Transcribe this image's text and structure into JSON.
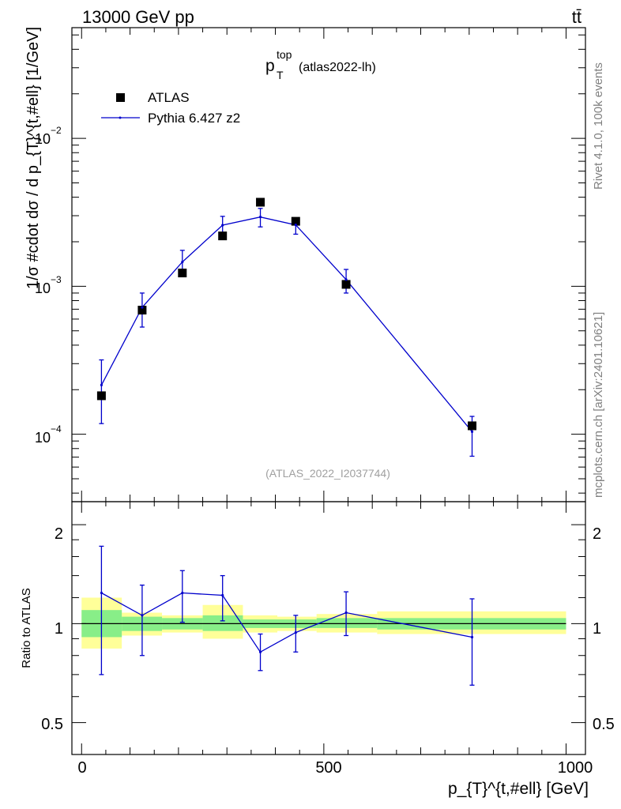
{
  "header": {
    "left": "13000 GeV pp",
    "right": "tt̄"
  },
  "side_labels": {
    "rivet": "Rivet 4.1.0,  100k events",
    "mcplots": "mcplots.cern.ch [arXiv:2401.10621]"
  },
  "chart_data": [
    {
      "type": "scatter",
      "panel": "main",
      "title": {
        "main": "p",
        "superscript": "top",
        "subscript": "T",
        "suffix": "(atlas2022-lh)"
      },
      "watermark": "(ATLAS_2022_I2037744)",
      "ylabel": "1/σ #cdot dσ / d p_{T}^{t,#ell} [1/GeV]",
      "yscale": "log",
      "ylim": [
        3.5e-05,
        0.056
      ],
      "xlim": [
        -20,
        1040
      ],
      "y_tick_labels": [
        {
          "base": "10",
          "exp": "−4",
          "value": 0.0001
        },
        {
          "base": "10",
          "exp": "−3",
          "value": 0.001
        },
        {
          "base": "10",
          "exp": "−2",
          "value": 0.01
        }
      ],
      "legend": [
        {
          "label": "ATLAS",
          "marker": "square",
          "color": "#000000"
        },
        {
          "label": "Pythia 6.427 z2",
          "marker": "line",
          "color": "#0000cc"
        }
      ],
      "series": [
        {
          "name": "ATLAS",
          "color": "#000000",
          "x": [
            41,
            125,
            208,
            291,
            369,
            442,
            546,
            806
          ],
          "y": [
            0.000182,
            0.00069,
            0.00123,
            0.00219,
            0.0037,
            0.00275,
            0.00103,
            0.000114
          ]
        },
        {
          "name": "Pythia 6.427 z2",
          "color": "#0000cc",
          "x": [
            41,
            125,
            208,
            291,
            369,
            442,
            546,
            806
          ],
          "y": [
            0.000215,
            0.00072,
            0.00146,
            0.00259,
            0.00294,
            0.0026,
            0.00111,
            0.000104
          ],
          "y_err_low": [
            9.7e-05,
            0.00019,
            0.00023,
            0.00035,
            0.00042,
            0.00035,
            0.00021,
            3.3e-05
          ],
          "y_err_high": [
            0.000103,
            0.00018,
            0.00029,
            0.00038,
            0.00042,
            0.00028,
            0.00019,
            2.8e-05
          ]
        }
      ]
    },
    {
      "type": "line",
      "panel": "ratio",
      "ylabel": "Ratio to ATLAS",
      "xlabel": "p_{T}^{t,#ell} [GeV]",
      "xlim": [
        -20,
        1040
      ],
      "ylim": [
        0.4,
        2.35
      ],
      "yscale": "log",
      "x_tick_labels": [
        "0",
        "500",
        "1000"
      ],
      "y_tick_labels": [
        "0.5",
        "1",
        "2"
      ],
      "x_ticks": [
        0,
        500,
        1000
      ],
      "y_ticks": [
        0.5,
        1,
        2
      ],
      "reference_line": 1,
      "bins": [
        {
          "lo": 0,
          "hi": 83,
          "band_inner": [
            0.91,
            1.1
          ],
          "band_outer": [
            0.84,
            1.2
          ]
        },
        {
          "lo": 83,
          "hi": 166,
          "band_inner": [
            0.95,
            1.05
          ],
          "band_outer": [
            0.92,
            1.08
          ]
        },
        {
          "lo": 166,
          "hi": 250,
          "band_inner": [
            0.96,
            1.04
          ],
          "band_outer": [
            0.94,
            1.06
          ]
        },
        {
          "lo": 250,
          "hi": 333,
          "band_inner": [
            0.95,
            1.06
          ],
          "band_outer": [
            0.9,
            1.14
          ]
        },
        {
          "lo": 333,
          "hi": 404,
          "band_inner": [
            0.97,
            1.03
          ],
          "band_outer": [
            0.94,
            1.06
          ]
        },
        {
          "lo": 404,
          "hi": 485,
          "band_inner": [
            0.97,
            1.03
          ],
          "band_outer": [
            0.95,
            1.05
          ]
        },
        {
          "lo": 485,
          "hi": 610,
          "band_inner": [
            0.97,
            1.04
          ],
          "band_outer": [
            0.94,
            1.07
          ]
        },
        {
          "lo": 610,
          "hi": 1000,
          "band_inner": [
            0.96,
            1.04
          ],
          "band_outer": [
            0.93,
            1.09
          ]
        }
      ],
      "band_colors": {
        "outer": "#ffff99",
        "inner": "#88ee88"
      },
      "series": [
        {
          "name": "Pythia 6.427 z2 / ATLAS",
          "color": "#0000cc",
          "x": [
            41,
            125,
            208,
            291,
            369,
            442,
            546,
            806
          ],
          "y": [
            1.24,
            1.06,
            1.24,
            1.22,
            0.82,
            0.94,
            1.08,
            0.91
          ],
          "y_err_low": [
            0.54,
            0.26,
            0.23,
            0.2,
            0.1,
            0.12,
            0.16,
            0.26
          ],
          "y_err_high": [
            0.48,
            0.25,
            0.21,
            0.18,
            0.11,
            0.12,
            0.17,
            0.28
          ]
        }
      ]
    }
  ]
}
